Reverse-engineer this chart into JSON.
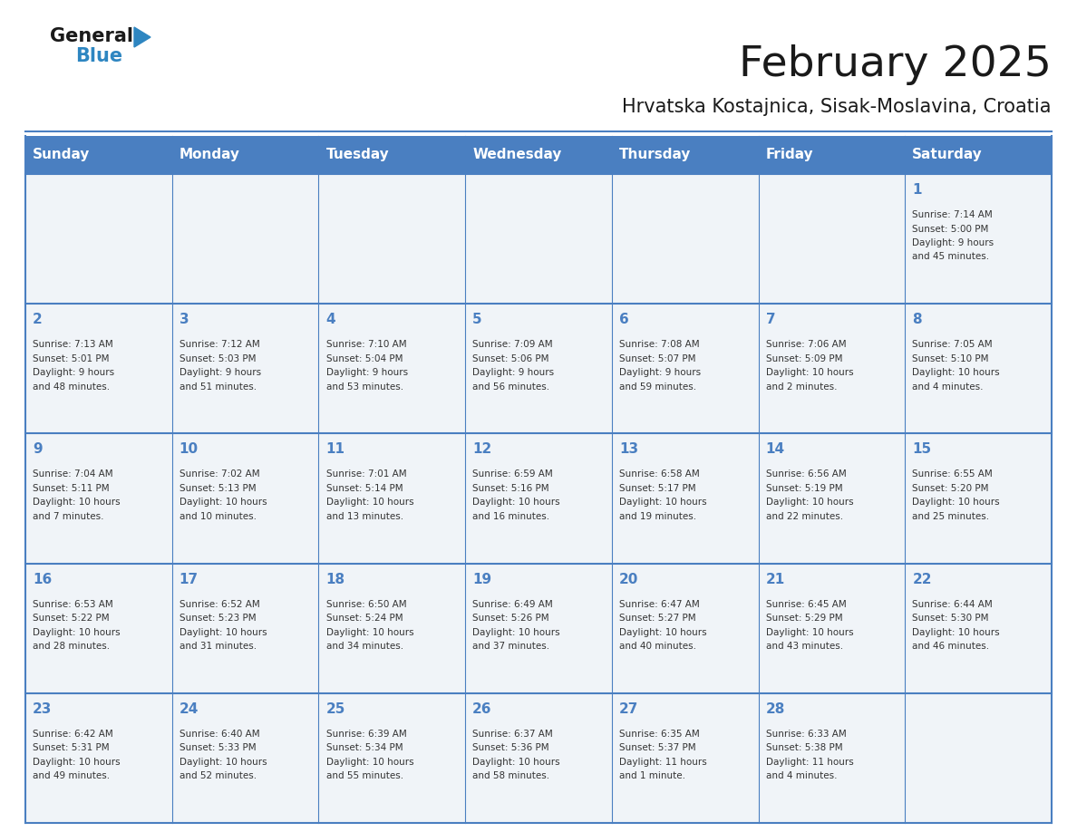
{
  "title": "February 2025",
  "subtitle": "Hrvatska Kostajnica, Sisak-Moslavina, Croatia",
  "header_bg": "#4a7fc1",
  "header_text": "#ffffff",
  "cell_bg": "#f0f4f8",
  "day_names": [
    "Sunday",
    "Monday",
    "Tuesday",
    "Wednesday",
    "Thursday",
    "Friday",
    "Saturday"
  ],
  "title_color": "#1a1a1a",
  "subtitle_color": "#1a1a1a",
  "day_number_color": "#4a7fc1",
  "info_color": "#333333",
  "logo_color1": "#1a1a1a",
  "logo_color2": "#2e86c1",
  "logo_triangle_color": "#2e86c1",
  "calendar": [
    [
      null,
      null,
      null,
      null,
      null,
      null,
      {
        "day": "1",
        "sunrise": "7:14 AM",
        "sunset": "5:00 PM",
        "daylight1": "9 hours",
        "daylight2": "and 45 minutes."
      }
    ],
    [
      {
        "day": "2",
        "sunrise": "7:13 AM",
        "sunset": "5:01 PM",
        "daylight1": "9 hours",
        "daylight2": "and 48 minutes."
      },
      {
        "day": "3",
        "sunrise": "7:12 AM",
        "sunset": "5:03 PM",
        "daylight1": "9 hours",
        "daylight2": "and 51 minutes."
      },
      {
        "day": "4",
        "sunrise": "7:10 AM",
        "sunset": "5:04 PM",
        "daylight1": "9 hours",
        "daylight2": "and 53 minutes."
      },
      {
        "day": "5",
        "sunrise": "7:09 AM",
        "sunset": "5:06 PM",
        "daylight1": "9 hours",
        "daylight2": "and 56 minutes."
      },
      {
        "day": "6",
        "sunrise": "7:08 AM",
        "sunset": "5:07 PM",
        "daylight1": "9 hours",
        "daylight2": "and 59 minutes."
      },
      {
        "day": "7",
        "sunrise": "7:06 AM",
        "sunset": "5:09 PM",
        "daylight1": "10 hours",
        "daylight2": "and 2 minutes."
      },
      {
        "day": "8",
        "sunrise": "7:05 AM",
        "sunset": "5:10 PM",
        "daylight1": "10 hours",
        "daylight2": "and 4 minutes."
      }
    ],
    [
      {
        "day": "9",
        "sunrise": "7:04 AM",
        "sunset": "5:11 PM",
        "daylight1": "10 hours",
        "daylight2": "and 7 minutes."
      },
      {
        "day": "10",
        "sunrise": "7:02 AM",
        "sunset": "5:13 PM",
        "daylight1": "10 hours",
        "daylight2": "and 10 minutes."
      },
      {
        "day": "11",
        "sunrise": "7:01 AM",
        "sunset": "5:14 PM",
        "daylight1": "10 hours",
        "daylight2": "and 13 minutes."
      },
      {
        "day": "12",
        "sunrise": "6:59 AM",
        "sunset": "5:16 PM",
        "daylight1": "10 hours",
        "daylight2": "and 16 minutes."
      },
      {
        "day": "13",
        "sunrise": "6:58 AM",
        "sunset": "5:17 PM",
        "daylight1": "10 hours",
        "daylight2": "and 19 minutes."
      },
      {
        "day": "14",
        "sunrise": "6:56 AM",
        "sunset": "5:19 PM",
        "daylight1": "10 hours",
        "daylight2": "and 22 minutes."
      },
      {
        "day": "15",
        "sunrise": "6:55 AM",
        "sunset": "5:20 PM",
        "daylight1": "10 hours",
        "daylight2": "and 25 minutes."
      }
    ],
    [
      {
        "day": "16",
        "sunrise": "6:53 AM",
        "sunset": "5:22 PM",
        "daylight1": "10 hours",
        "daylight2": "and 28 minutes."
      },
      {
        "day": "17",
        "sunrise": "6:52 AM",
        "sunset": "5:23 PM",
        "daylight1": "10 hours",
        "daylight2": "and 31 minutes."
      },
      {
        "day": "18",
        "sunrise": "6:50 AM",
        "sunset": "5:24 PM",
        "daylight1": "10 hours",
        "daylight2": "and 34 minutes."
      },
      {
        "day": "19",
        "sunrise": "6:49 AM",
        "sunset": "5:26 PM",
        "daylight1": "10 hours",
        "daylight2": "and 37 minutes."
      },
      {
        "day": "20",
        "sunrise": "6:47 AM",
        "sunset": "5:27 PM",
        "daylight1": "10 hours",
        "daylight2": "and 40 minutes."
      },
      {
        "day": "21",
        "sunrise": "6:45 AM",
        "sunset": "5:29 PM",
        "daylight1": "10 hours",
        "daylight2": "and 43 minutes."
      },
      {
        "day": "22",
        "sunrise": "6:44 AM",
        "sunset": "5:30 PM",
        "daylight1": "10 hours",
        "daylight2": "and 46 minutes."
      }
    ],
    [
      {
        "day": "23",
        "sunrise": "6:42 AM",
        "sunset": "5:31 PM",
        "daylight1": "10 hours",
        "daylight2": "and 49 minutes."
      },
      {
        "day": "24",
        "sunrise": "6:40 AM",
        "sunset": "5:33 PM",
        "daylight1": "10 hours",
        "daylight2": "and 52 minutes."
      },
      {
        "day": "25",
        "sunrise": "6:39 AM",
        "sunset": "5:34 PM",
        "daylight1": "10 hours",
        "daylight2": "and 55 minutes."
      },
      {
        "day": "26",
        "sunrise": "6:37 AM",
        "sunset": "5:36 PM",
        "daylight1": "10 hours",
        "daylight2": "and 58 minutes."
      },
      {
        "day": "27",
        "sunrise": "6:35 AM",
        "sunset": "5:37 PM",
        "daylight1": "11 hours",
        "daylight2": "and 1 minute."
      },
      {
        "day": "28",
        "sunrise": "6:33 AM",
        "sunset": "5:38 PM",
        "daylight1": "11 hours",
        "daylight2": "and 4 minutes."
      },
      null
    ]
  ]
}
